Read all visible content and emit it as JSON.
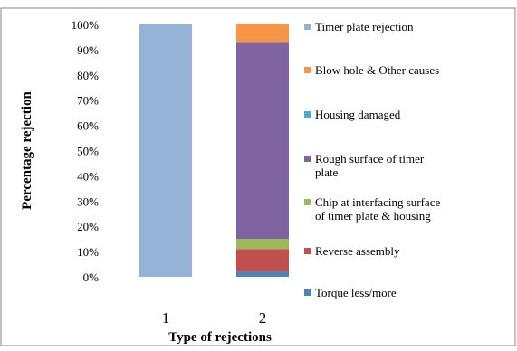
{
  "chart_data": {
    "type": "bar",
    "stacked": true,
    "percent_stacked": true,
    "categories": [
      "1",
      "2"
    ],
    "series": [
      {
        "name": "Torque less/more",
        "color": "#4F81BD",
        "values": [
          0,
          2
        ]
      },
      {
        "name": "Reverse assembly",
        "color": "#C0504D",
        "values": [
          0,
          9
        ]
      },
      {
        "name": "Chip at interfacing surface of timer plate & housing",
        "color": "#9BBB59",
        "values": [
          0,
          4
        ]
      },
      {
        "name": "Rough surface of timer plate",
        "color": "#8064A2",
        "values": [
          0,
          78
        ]
      },
      {
        "name": "Housing damaged",
        "color": "#4BACC6",
        "values": [
          0,
          0
        ]
      },
      {
        "name": "Blow hole & Other causes",
        "color": "#F79646",
        "values": [
          0,
          7
        ]
      },
      {
        "name": "Timer plate rejection",
        "color": "#95B3D7",
        "values": [
          100,
          0
        ]
      }
    ],
    "legend_order": [
      "Timer plate rejection",
      "Blow hole & Other causes",
      "Housing damaged",
      "Rough surface of timer plate",
      "Chip at interfacing surface of timer plate & housing",
      "Reverse assembly",
      "Torque less/more"
    ],
    "legend_lines": {
      "Timer plate rejection": [
        "Timer plate rejection"
      ],
      "Blow hole & Other causes": [
        "Blow hole & Other causes"
      ],
      "Housing damaged": [
        "Housing damaged"
      ],
      "Rough surface of timer plate": [
        "Rough surface of timer",
        "plate"
      ],
      "Chip at interfacing surface of timer plate & housing": [
        "Chip at interfacing surface",
        "of timer plate & housing"
      ],
      "Reverse assembly": [
        "Reverse assembly"
      ],
      "Torque less/more": [
        "Torque less/more"
      ]
    },
    "yticks": [
      "0%",
      "10%",
      "20%",
      "30%",
      "40%",
      "50%",
      "60%",
      "70%",
      "80%",
      "90%",
      "100%"
    ],
    "ylim": [
      0,
      100
    ],
    "ylabel": "Percentage rejection",
    "xlabel": "Type of rejections",
    "legend_position": "right",
    "grid": false
  }
}
